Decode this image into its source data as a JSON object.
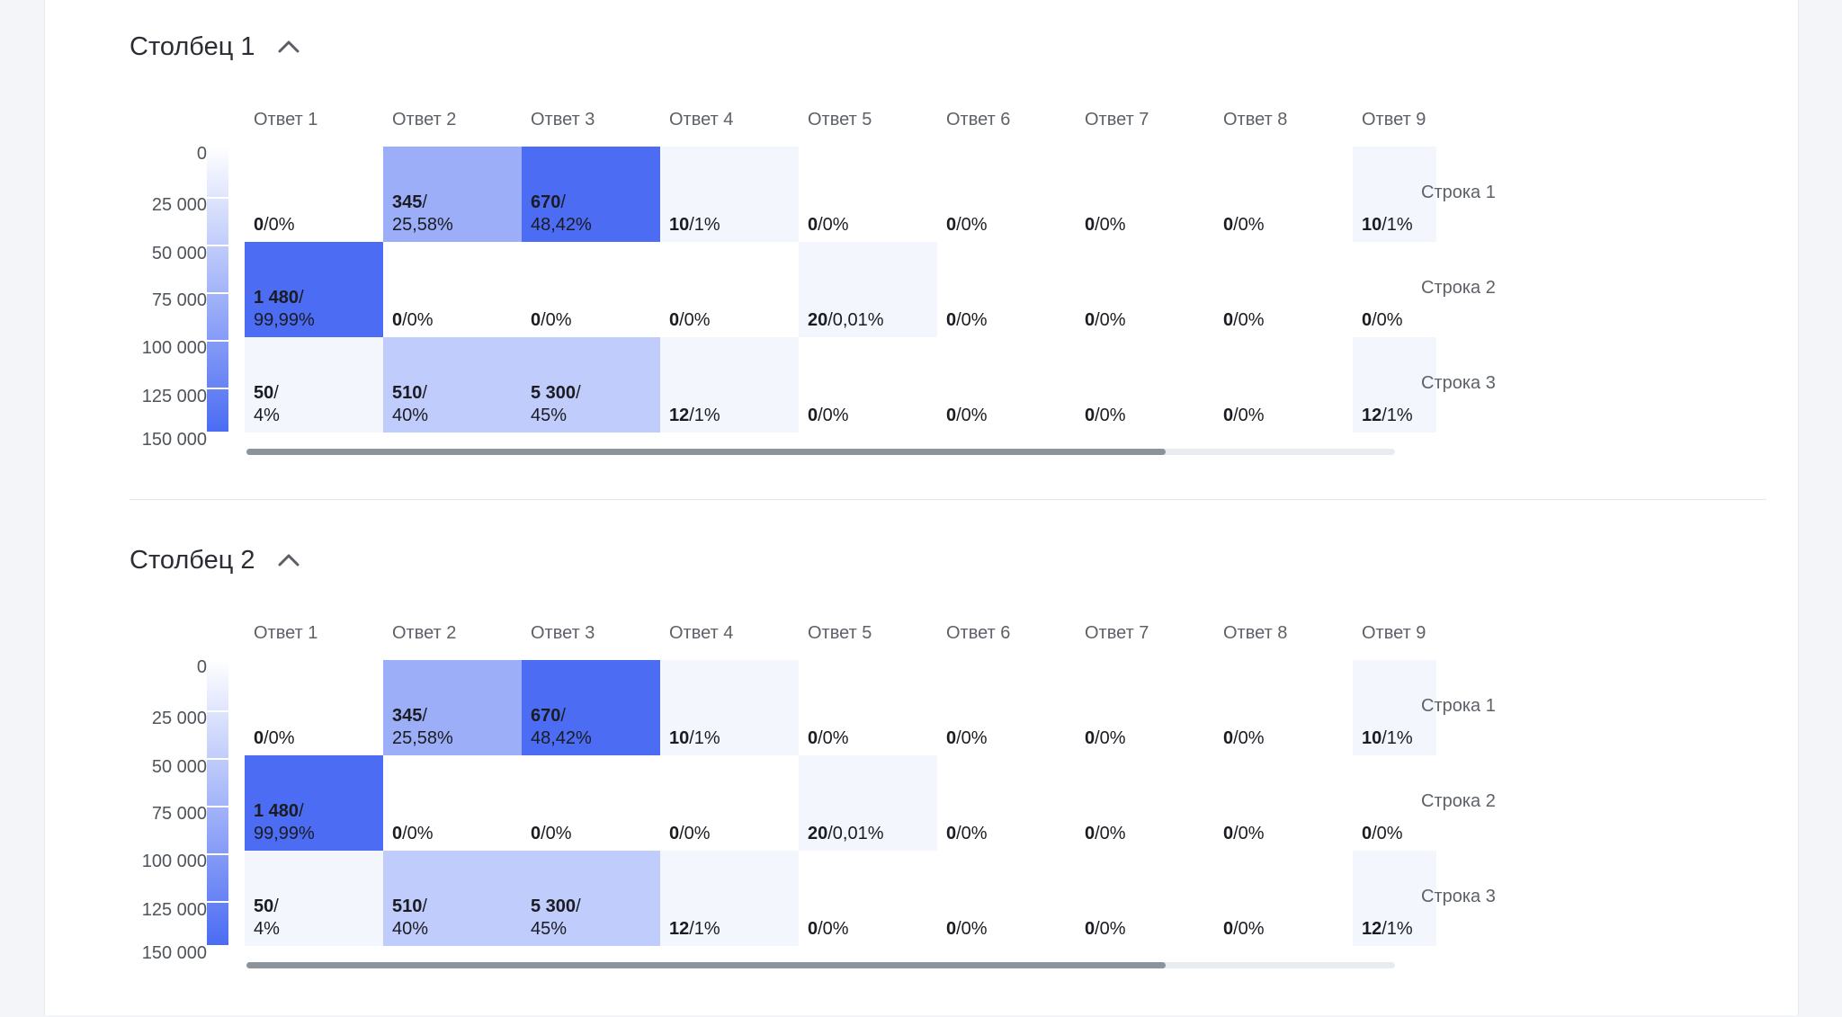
{
  "sections": [
    {
      "title": "Столбец 1",
      "toggle_icon": "chevron-up-icon",
      "scroll_fraction": 0.8
    },
    {
      "title": "Столбец 2",
      "toggle_icon": "chevron-up-icon",
      "scroll_fraction": 0.8
    }
  ],
  "chart_data": [
    {
      "type": "heatmap",
      "columns": [
        "Ответ 1",
        "Ответ 2",
        "Ответ 3",
        "Ответ 4",
        "Ответ 5",
        "Ответ 6",
        "Ответ 7",
        "Ответ 8",
        "Ответ 9"
      ],
      "rows": [
        "Строка 1",
        "Строка 2",
        "Строка 3"
      ],
      "color_scale": {
        "ticks": [
          "0",
          "25 000",
          "50 000",
          "75 000",
          "100 000",
          "125 000",
          "150 000"
        ],
        "range": [
          0,
          150000
        ],
        "low_color": "#ffffff",
        "high_color": "#4b6cf3"
      },
      "cells": [
        [
          {
            "count": "0",
            "pct": "0%",
            "level": 0
          },
          {
            "count": "345",
            "pct": "25,58%",
            "level": 0.55
          },
          {
            "count": "670",
            "pct": "48,42%",
            "level": 1
          },
          {
            "count": "10",
            "pct": "1%",
            "level": 0.06
          },
          {
            "count": "0",
            "pct": "0%",
            "level": 0
          },
          {
            "count": "0",
            "pct": "0%",
            "level": 0
          },
          {
            "count": "0",
            "pct": "0%",
            "level": 0
          },
          {
            "count": "0",
            "pct": "0%",
            "level": 0
          },
          {
            "count": "10",
            "pct": "1%",
            "level": 0.06
          }
        ],
        [
          {
            "count": "1 480",
            "pct": "99,99%",
            "level": 1
          },
          {
            "count": "0",
            "pct": "0%",
            "level": 0
          },
          {
            "count": "0",
            "pct": "0%",
            "level": 0
          },
          {
            "count": "0",
            "pct": "0%",
            "level": 0
          },
          {
            "count": "20",
            "pct": "0,01%",
            "level": 0.06
          },
          {
            "count": "0",
            "pct": "0%",
            "level": 0
          },
          {
            "count": "0",
            "pct": "0%",
            "level": 0
          },
          {
            "count": "0",
            "pct": "0%",
            "level": 0
          },
          {
            "count": "0",
            "pct": "0%",
            "level": 0
          }
        ],
        [
          {
            "count": "50",
            "pct": "4%",
            "level": 0.06
          },
          {
            "count": "510",
            "pct": "40%",
            "level": 0.35
          },
          {
            "count": "5 300",
            "pct": "45%",
            "level": 0.35
          },
          {
            "count": "12",
            "pct": "1%",
            "level": 0.06
          },
          {
            "count": "0",
            "pct": "0%",
            "level": 0
          },
          {
            "count": "0",
            "pct": "0%",
            "level": 0
          },
          {
            "count": "0",
            "pct": "0%",
            "level": 0
          },
          {
            "count": "0",
            "pct": "0%",
            "level": 0
          },
          {
            "count": "12",
            "pct": "1%",
            "level": 0.06
          }
        ]
      ]
    },
    {
      "type": "heatmap",
      "columns": [
        "Ответ 1",
        "Ответ 2",
        "Ответ 3",
        "Ответ 4",
        "Ответ 5",
        "Ответ 6",
        "Ответ 7",
        "Ответ 8",
        "Ответ 9"
      ],
      "rows": [
        "Строка 1",
        "Строка 2",
        "Строка 3"
      ],
      "color_scale": {
        "ticks": [
          "0",
          "25 000",
          "50 000",
          "75 000",
          "100 000",
          "125 000",
          "150 000"
        ],
        "range": [
          0,
          150000
        ],
        "low_color": "#ffffff",
        "high_color": "#4b6cf3"
      },
      "cells": [
        [
          {
            "count": "0",
            "pct": "0%",
            "level": 0
          },
          {
            "count": "345",
            "pct": "25,58%",
            "level": 0.55
          },
          {
            "count": "670",
            "pct": "48,42%",
            "level": 1
          },
          {
            "count": "10",
            "pct": "1%",
            "level": 0.06
          },
          {
            "count": "0",
            "pct": "0%",
            "level": 0
          },
          {
            "count": "0",
            "pct": "0%",
            "level": 0
          },
          {
            "count": "0",
            "pct": "0%",
            "level": 0
          },
          {
            "count": "0",
            "pct": "0%",
            "level": 0
          },
          {
            "count": "10",
            "pct": "1%",
            "level": 0.06
          }
        ],
        [
          {
            "count": "1 480",
            "pct": "99,99%",
            "level": 1
          },
          {
            "count": "0",
            "pct": "0%",
            "level": 0
          },
          {
            "count": "0",
            "pct": "0%",
            "level": 0
          },
          {
            "count": "0",
            "pct": "0%",
            "level": 0
          },
          {
            "count": "20",
            "pct": "0,01%",
            "level": 0.06
          },
          {
            "count": "0",
            "pct": "0%",
            "level": 0
          },
          {
            "count": "0",
            "pct": "0%",
            "level": 0
          },
          {
            "count": "0",
            "pct": "0%",
            "level": 0
          },
          {
            "count": "0",
            "pct": "0%",
            "level": 0
          }
        ],
        [
          {
            "count": "50",
            "pct": "4%",
            "level": 0.06
          },
          {
            "count": "510",
            "pct": "40%",
            "level": 0.35
          },
          {
            "count": "5 300",
            "pct": "45%",
            "level": 0.35
          },
          {
            "count": "12",
            "pct": "1%",
            "level": 0.06
          },
          {
            "count": "0",
            "pct": "0%",
            "level": 0
          },
          {
            "count": "0",
            "pct": "0%",
            "level": 0
          },
          {
            "count": "0",
            "pct": "0%",
            "level": 0
          },
          {
            "count": "0",
            "pct": "0%",
            "level": 0
          },
          {
            "count": "12",
            "pct": "1%",
            "level": 0.06
          }
        ]
      ]
    }
  ]
}
